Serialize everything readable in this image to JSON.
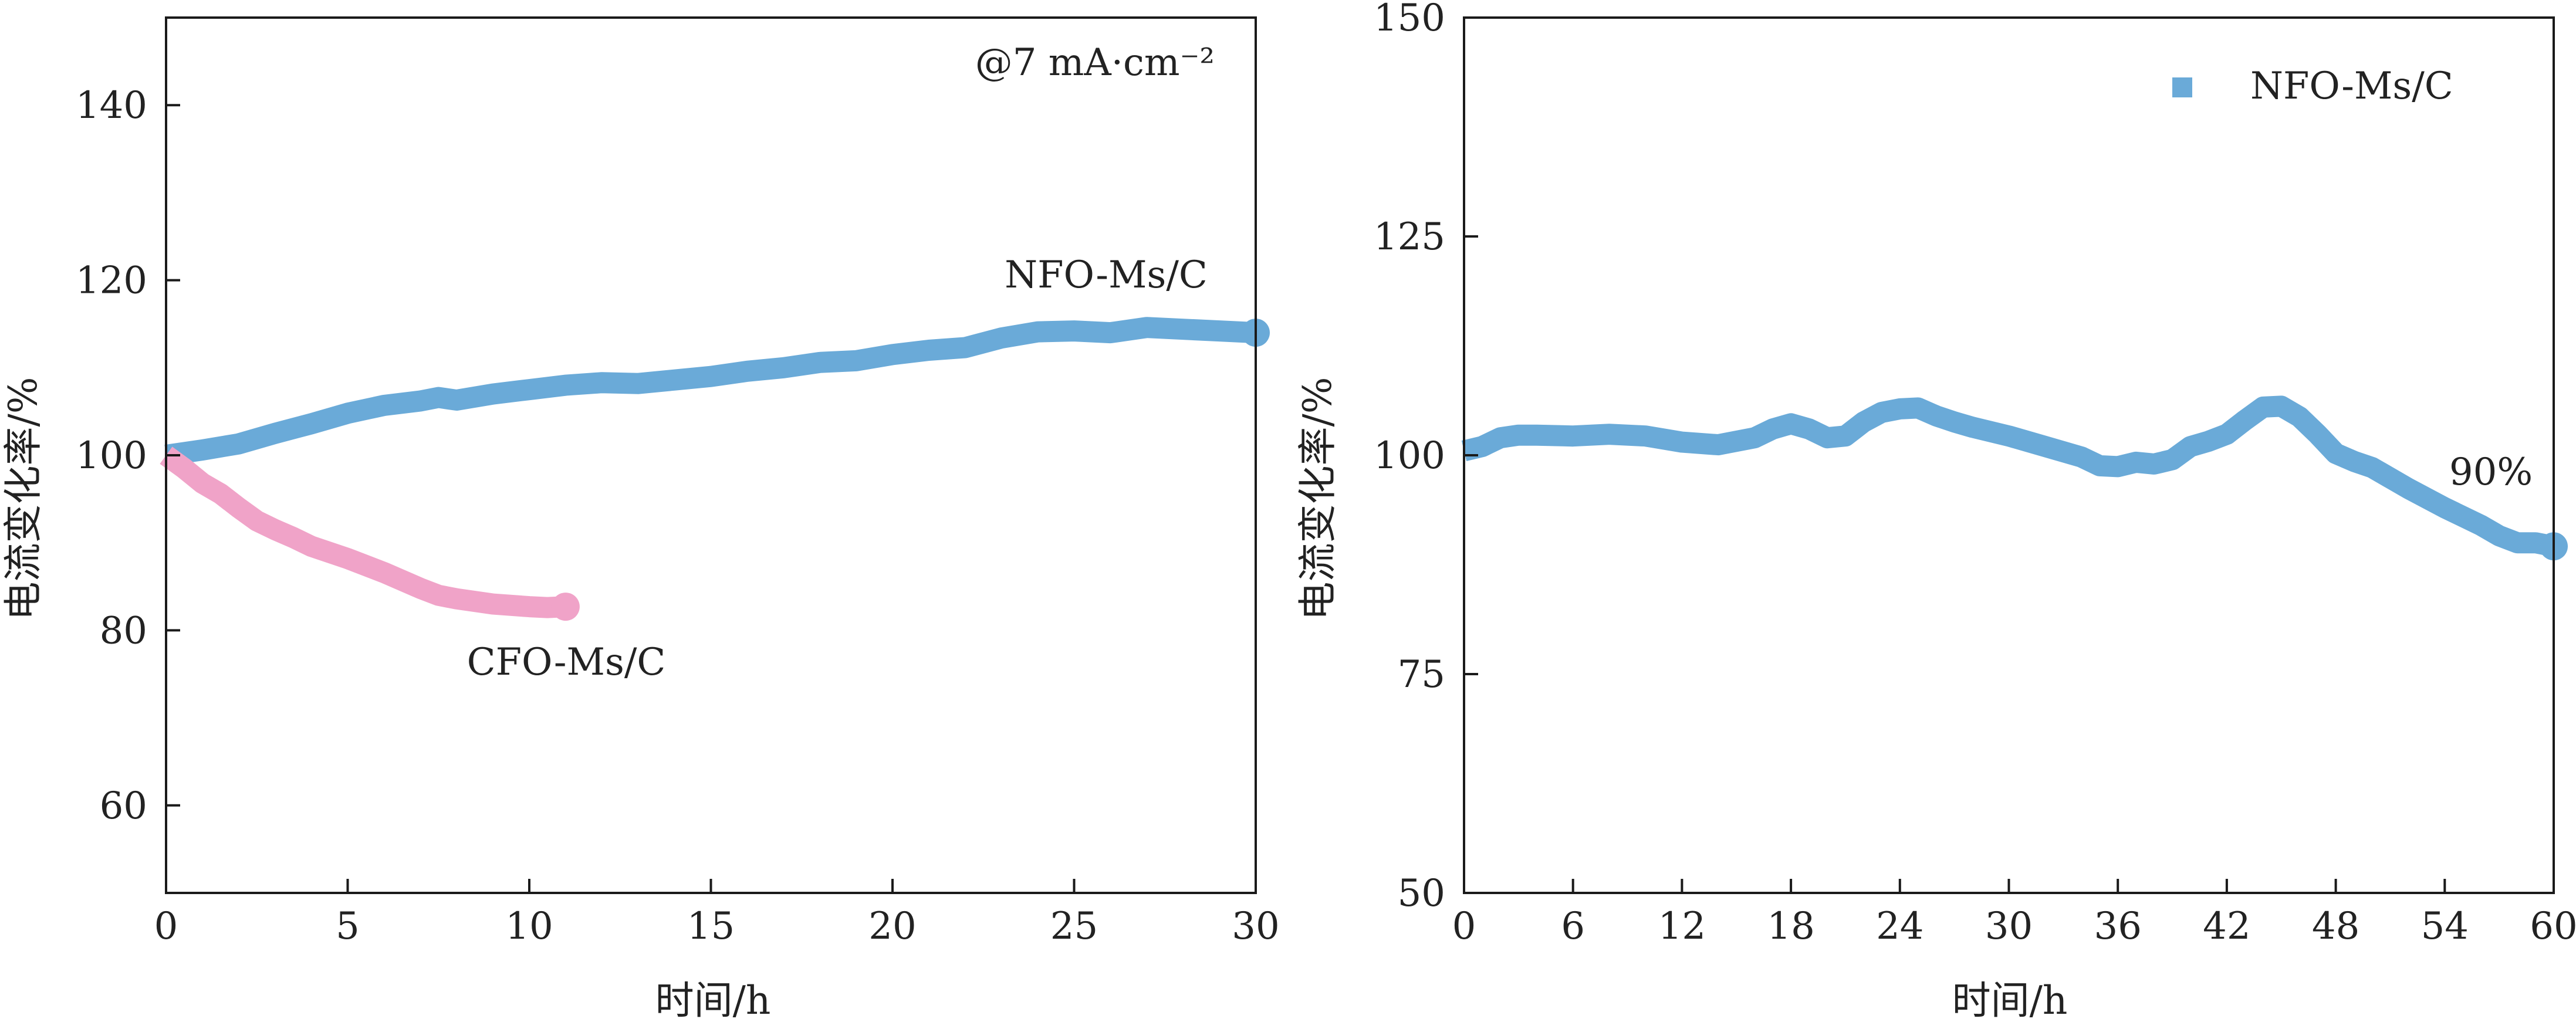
{
  "chart_data": [
    {
      "type": "line",
      "xlabel": "时间/h",
      "ylabel": "电流变化率/%",
      "xlim": [
        0,
        30
      ],
      "ylim": [
        50,
        150
      ],
      "xticks": [
        0,
        5,
        10,
        15,
        20,
        25,
        30
      ],
      "yticks": [
        60,
        80,
        100,
        120,
        140
      ],
      "annotation": "@7 mA·cm⁻²",
      "series": [
        {
          "name": "NFO-Ms/C",
          "color": "#6aaad8",
          "x": [
            0,
            1,
            2,
            3,
            4,
            5,
            6,
            7,
            7.5,
            8,
            9,
            10,
            11,
            12,
            13,
            14,
            15,
            16,
            17,
            18,
            19,
            20,
            21,
            22,
            23,
            24,
            25,
            26,
            27,
            28,
            29,
            30
          ],
          "y": [
            100,
            100.6,
            101.3,
            102.5,
            103.6,
            104.8,
            105.7,
            106.2,
            106.6,
            106.3,
            107.0,
            107.5,
            108.0,
            108.3,
            108.2,
            108.6,
            109.0,
            109.6,
            110.0,
            110.6,
            110.8,
            111.5,
            112.0,
            112.3,
            113.4,
            114.1,
            114.2,
            114.0,
            114.6,
            114.4,
            114.2,
            114.0
          ]
        },
        {
          "name": "CFO-Ms/C",
          "color": "#f0a3c8",
          "x": [
            0,
            0.5,
            1,
            1.5,
            2,
            2.5,
            3,
            3.5,
            4,
            5,
            6,
            7,
            7.5,
            8,
            9,
            10,
            10.5,
            11
          ],
          "y": [
            100,
            98.5,
            96.8,
            95.6,
            94.0,
            92.5,
            91.5,
            90.6,
            89.6,
            88.2,
            86.6,
            84.8,
            84.0,
            83.6,
            83.0,
            82.7,
            82.6,
            82.7
          ]
        }
      ],
      "series_labels": [
        "NFO-Ms/C",
        "CFO-Ms/C"
      ]
    },
    {
      "type": "line",
      "xlabel": "时间/h",
      "ylabel": "电流变化率/%",
      "xlim": [
        0,
        60
      ],
      "ylim": [
        50,
        150
      ],
      "xticks": [
        0,
        6,
        12,
        18,
        24,
        30,
        36,
        42,
        48,
        54,
        60
      ],
      "yticks": [
        50,
        75,
        100,
        125,
        150
      ],
      "legend": "top-right",
      "annotation": "90%",
      "series": [
        {
          "name": "NFO-Ms/C",
          "color": "#6aaad8",
          "x": [
            0,
            1,
            2,
            3,
            4,
            6,
            8,
            10,
            12,
            14,
            16,
            17,
            18,
            19,
            20,
            21,
            22,
            23,
            24,
            25,
            26,
            27,
            28,
            30,
            32,
            34,
            35,
            36,
            37,
            38,
            39,
            40,
            41,
            42,
            43,
            44,
            45,
            46,
            47,
            48,
            49,
            50,
            52,
            54,
            56,
            57,
            58,
            59,
            60
          ],
          "y": [
            100.5,
            101,
            102,
            102.3,
            102.3,
            102.2,
            102.4,
            102.2,
            101.5,
            101.2,
            102,
            103,
            103.6,
            103,
            102,
            102.2,
            103.8,
            104.9,
            105.3,
            105.4,
            104.5,
            103.8,
            103.2,
            102.2,
            101.0,
            99.8,
            98.8,
            98.7,
            99.2,
            99.0,
            99.5,
            101.0,
            101.6,
            102.4,
            104.0,
            105.5,
            105.6,
            104.4,
            102.4,
            100.2,
            99.3,
            98.6,
            96.2,
            94.0,
            92.0,
            90.8,
            90.0,
            90.0,
            89.6
          ]
        }
      ]
    }
  ]
}
